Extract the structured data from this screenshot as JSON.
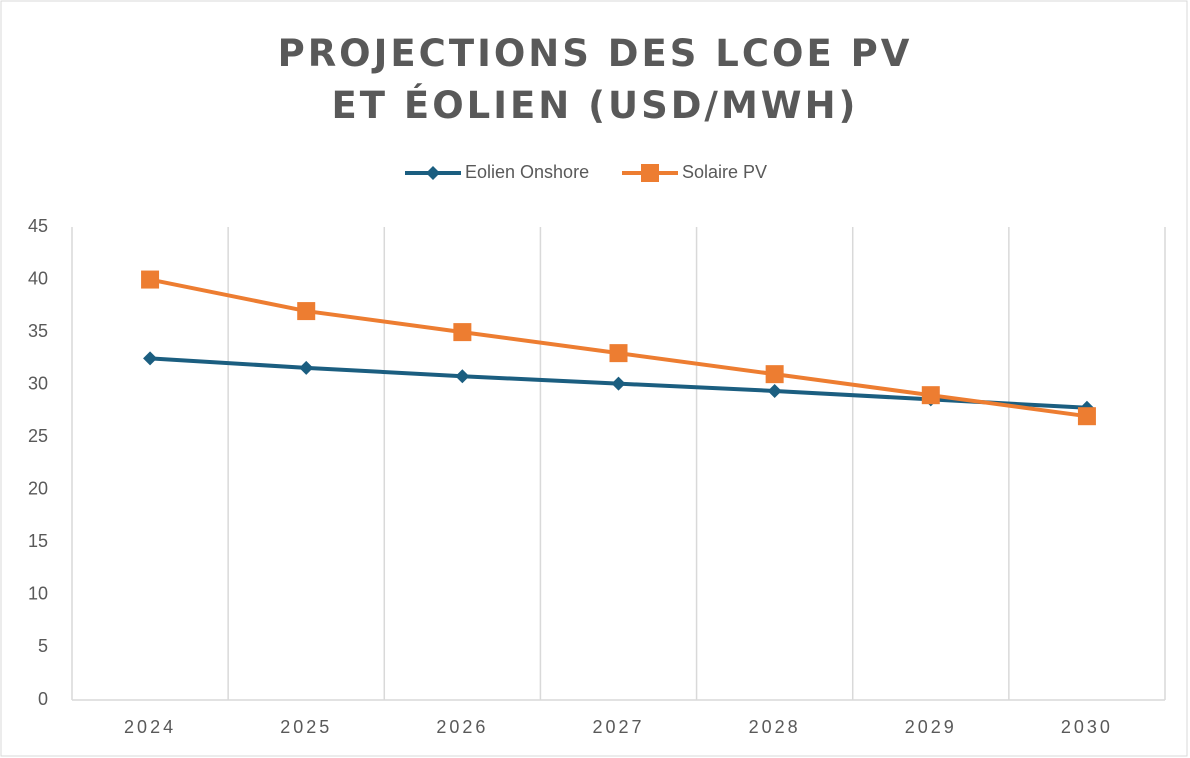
{
  "chart_data": {
    "type": "line",
    "title": "PROJECTIONS DES LCOE PV ET ÉOLIEN (USD/MWH)",
    "categories": [
      "2024",
      "2025",
      "2026",
      "2027",
      "2028",
      "2029",
      "2030"
    ],
    "series": [
      {
        "name": "Eolien Onshore",
        "color": "#1b5e80",
        "marker": "diamond",
        "values": [
          32.5,
          31.6,
          30.8,
          30.1,
          29.4,
          28.6,
          27.8
        ]
      },
      {
        "name": "Solaire PV",
        "color": "#ed7d31",
        "marker": "square",
        "values": [
          40,
          37,
          35,
          33,
          31,
          29,
          27
        ]
      }
    ],
    "ylim": [
      0,
      45
    ],
    "yticks": [
      0,
      5,
      10,
      15,
      20,
      25,
      30,
      35,
      40,
      45
    ],
    "grid": false,
    "legend": "top"
  }
}
